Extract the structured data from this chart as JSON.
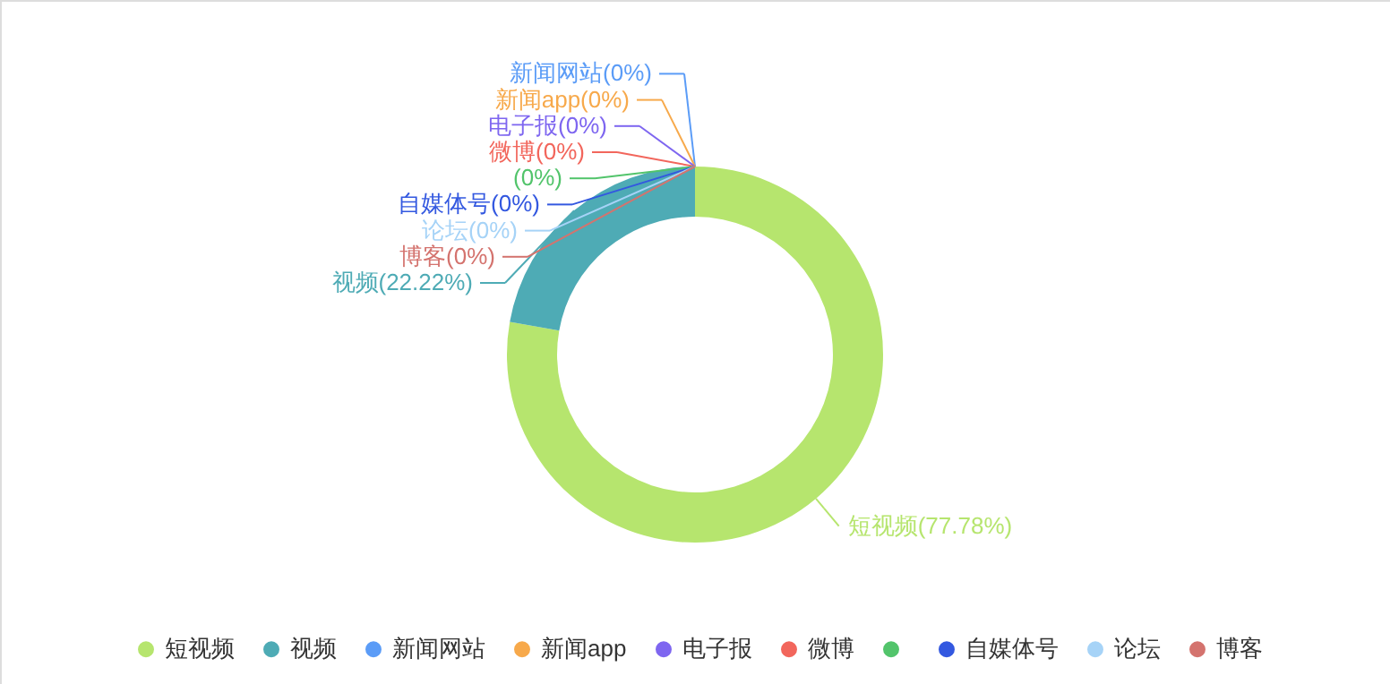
{
  "chart_data": {
    "type": "donut",
    "categories": [
      "短视频",
      "视频",
      "新闻网站",
      "新闻app",
      "电子报",
      "微博",
      null,
      "自媒体号",
      "论坛",
      "博客"
    ],
    "values": [
      77.78,
      22.22,
      0,
      0,
      0,
      0,
      0,
      0,
      0,
      0
    ],
    "colors": [
      "#b6e56e",
      "#4eabb5",
      "#5b9cf7",
      "#f7a94b",
      "#7e66f0",
      "#f2665c",
      "#52c46b",
      "#3358e0",
      "#a6d3f7",
      "#d4736e"
    ],
    "value_labels": [
      "短视频(77.78%)",
      "视频(22.22%)",
      "新闻网站(0%)",
      "新闻app(0%)",
      "电子报(0%)",
      "微博(0%)",
      "(0%)",
      "自媒体号(0%)",
      "论坛(0%)",
      "博客(0%)"
    ],
    "legend": "bottom"
  }
}
